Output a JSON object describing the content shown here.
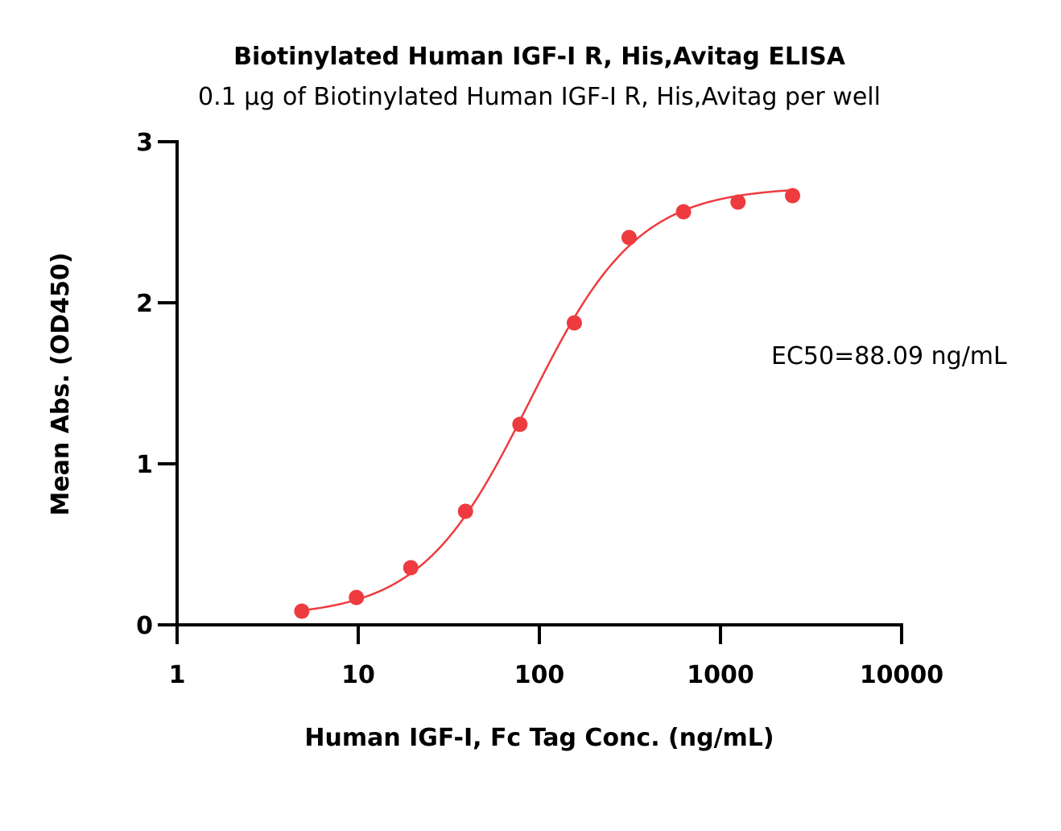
{
  "chart_data": {
    "type": "scatter",
    "title": "Biotinylated Human IGF-I R, His,Avitag ELISA",
    "subtitle": "0.1 μg of Biotinylated Human IGF-I R, His,Avitag per well",
    "xlabel": "Human IGF-I, Fc Tag Conc. (ng/mL)",
    "ylabel": "Mean Abs. (OD450)",
    "x_scale": "log",
    "xlim": [
      1,
      10000
    ],
    "ylim": [
      0,
      3
    ],
    "x_ticks": [
      1,
      10,
      100,
      1000,
      10000
    ],
    "x_tick_labels": [
      "1",
      "10",
      "100",
      "1000",
      "10000"
    ],
    "y_ticks": [
      0,
      1,
      2,
      3
    ],
    "y_tick_labels": [
      "0",
      "1",
      "2",
      "3"
    ],
    "grid": false,
    "series": [
      {
        "x": [
          4.88,
          9.77,
          19.5,
          39.1,
          78.1,
          156,
          313,
          625,
          1250,
          2500
        ],
        "y": [
          0.085,
          0.17,
          0.355,
          0.705,
          1.245,
          1.875,
          2.405,
          2.565,
          2.625,
          2.665
        ],
        "color": "#ee3b3f"
      }
    ],
    "fit": {
      "model": "4PL",
      "bottom": 0.05,
      "top": 2.72,
      "ec50": 88.09,
      "hill": 1.45
    },
    "annotation": "EC50=88.09 ng/mL"
  }
}
